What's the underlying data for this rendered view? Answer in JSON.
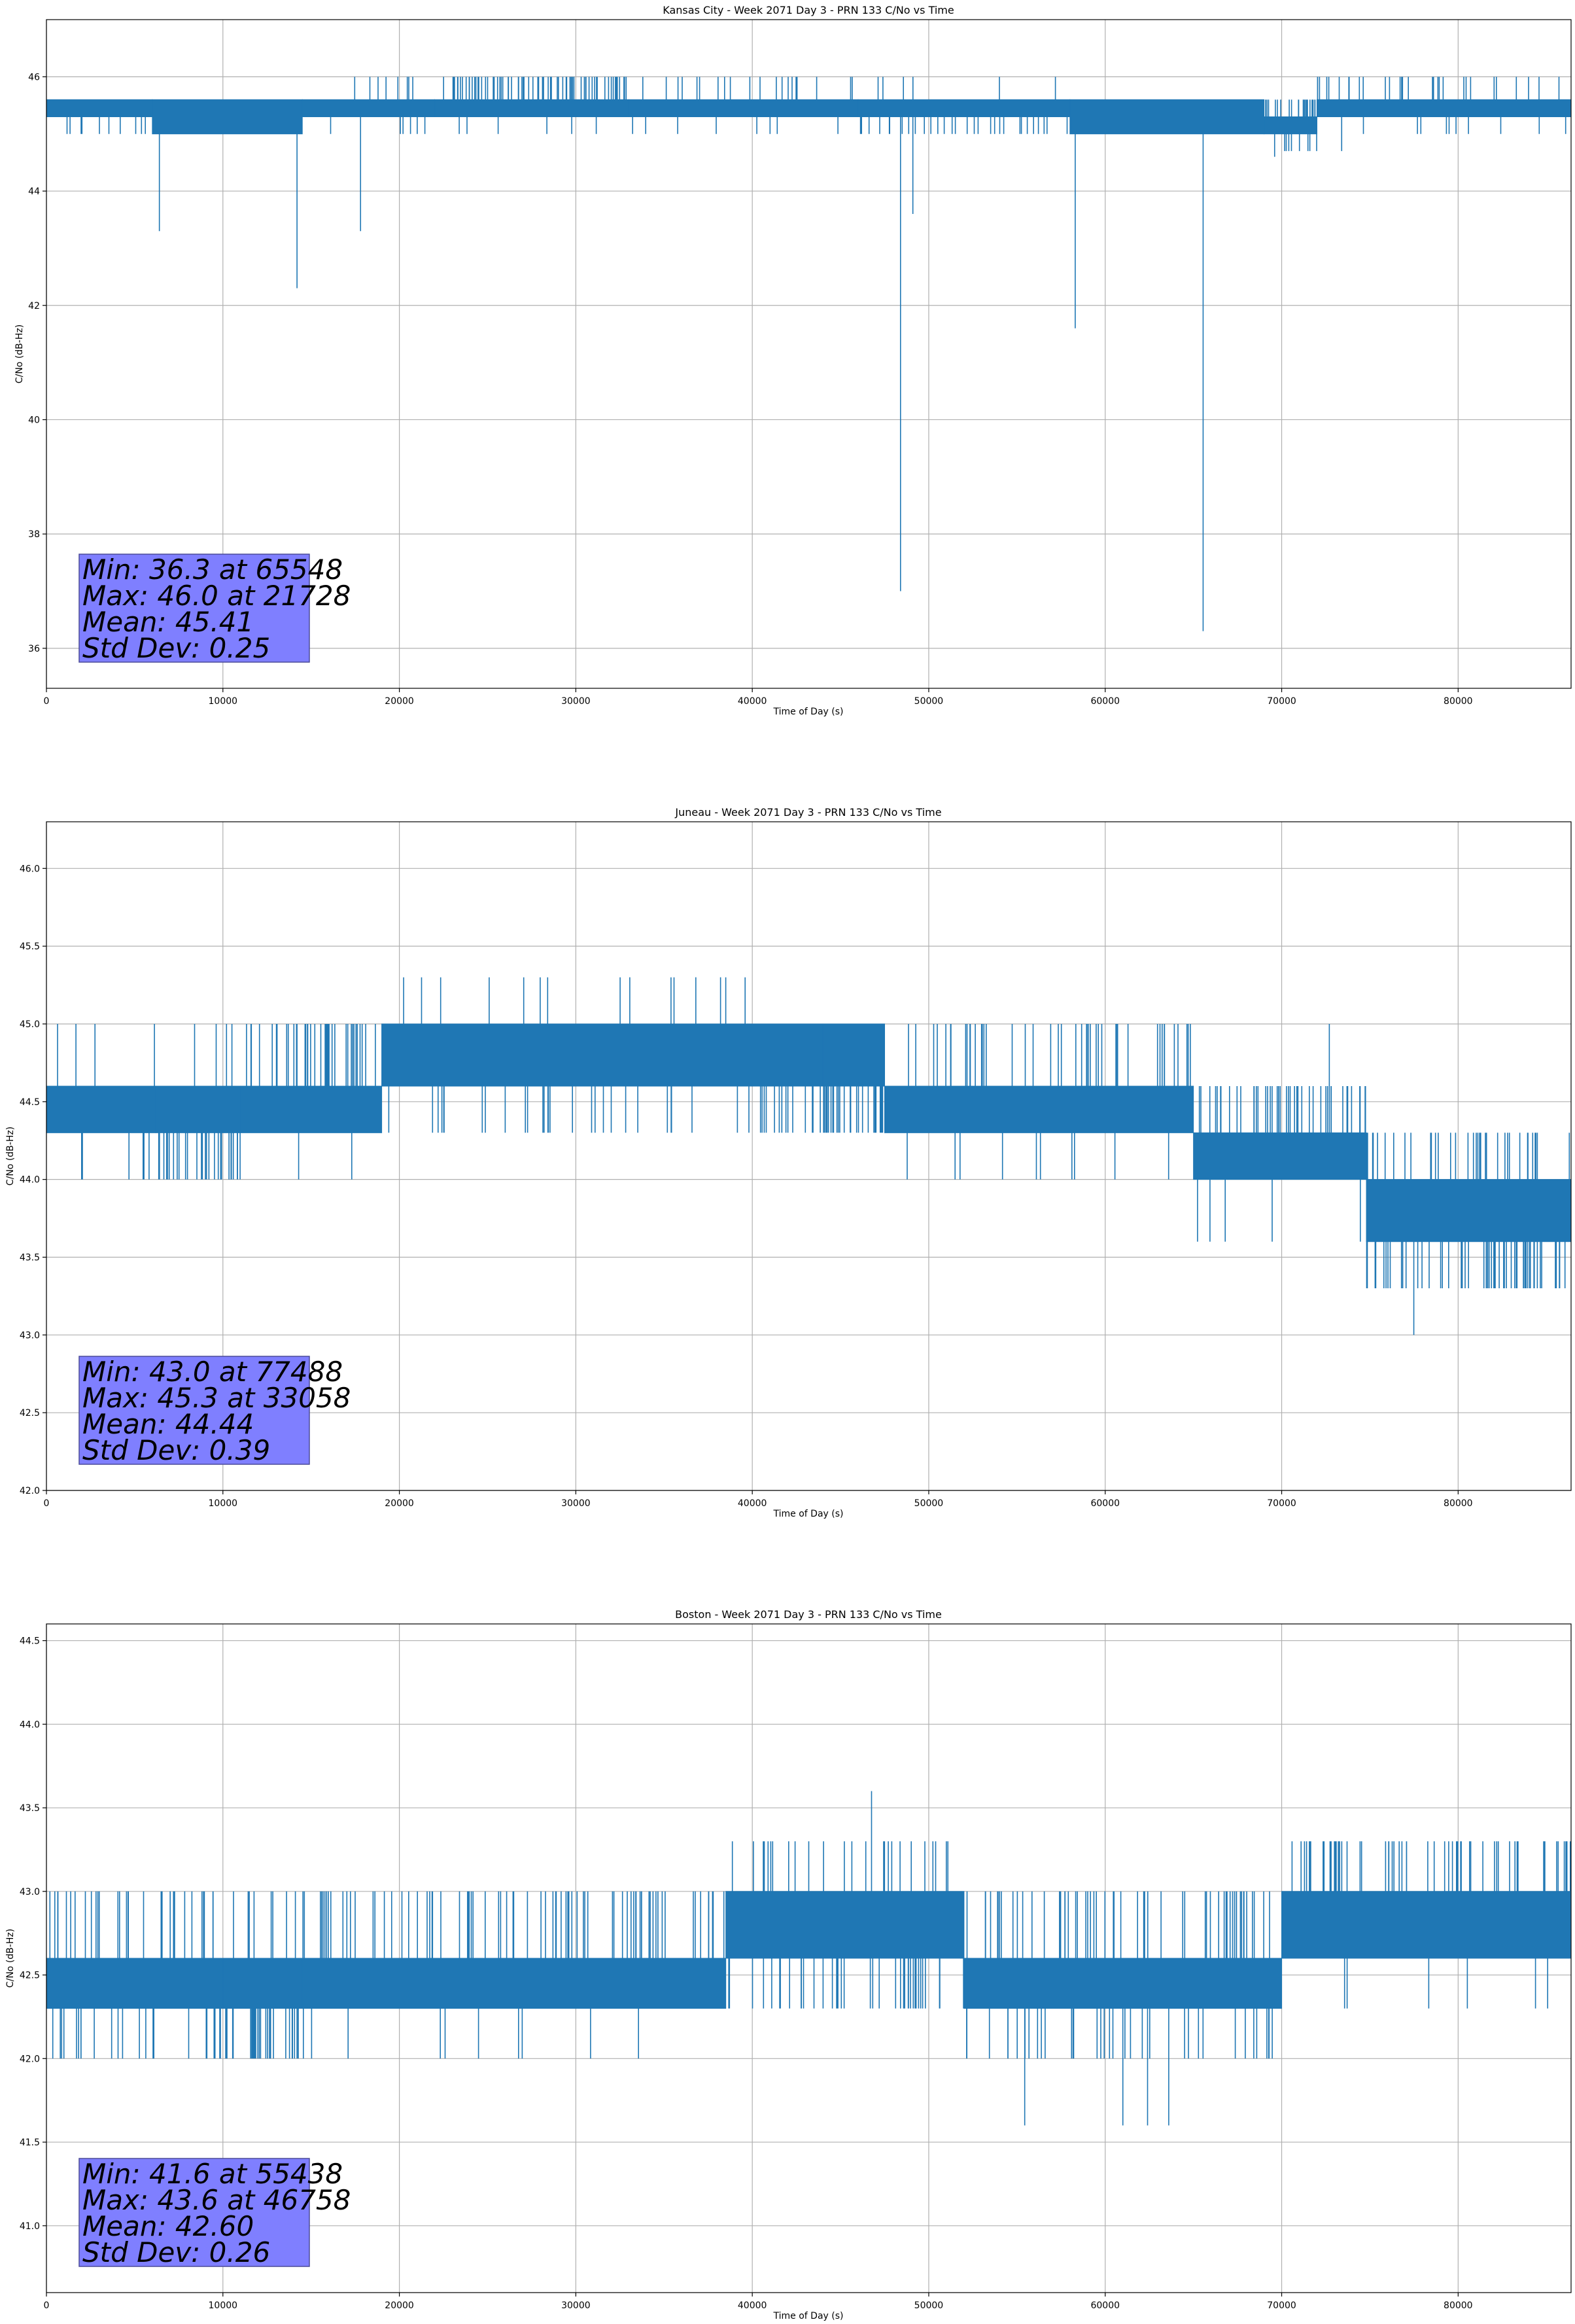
{
  "chart_data": [
    {
      "type": "line",
      "title": "Kansas City - Week 2071 Day 3 - PRN 133 C/No vs Time",
      "xlabel": "Time of Day (s)",
      "ylabel": "C/No (dB-Hz)",
      "xlim": [
        0,
        86400
      ],
      "ylim": [
        35.3,
        47.0
      ],
      "xticks": [
        0,
        10000,
        20000,
        30000,
        40000,
        50000,
        60000,
        70000,
        80000
      ],
      "yticks": [
        36,
        38,
        40,
        42,
        44,
        46
      ],
      "xtick_labels": [
        "0",
        "10000",
        "20000",
        "30000",
        "40000",
        "50000",
        "60000",
        "70000",
        "80000"
      ],
      "ytick_labels": [
        "36",
        "38",
        "40",
        "42",
        "44",
        "46"
      ],
      "grid": true,
      "series": [
        {
          "name": "C/No",
          "color": "#1f77b4",
          "bands": [
            {
              "x_start": 0,
              "x_end": 6000,
              "low": 45.3,
              "high": 45.6,
              "up_spikes": 6,
              "up_to": 45.6,
              "down_spikes": 10,
              "down_to": 45.0
            },
            {
              "x_start": 6000,
              "x_end": 14500,
              "low": 45.0,
              "high": 45.6,
              "up_spikes": 10,
              "up_to": 45.6,
              "down_spikes": 6,
              "down_to": 45.0
            },
            {
              "x_start": 14500,
              "x_end": 22000,
              "low": 45.3,
              "high": 45.6,
              "up_spikes": 8,
              "up_to": 46.0,
              "down_spikes": 6,
              "down_to": 45.0
            },
            {
              "x_start": 22000,
              "x_end": 33000,
              "low": 45.3,
              "high": 45.6,
              "up_spikes": 80,
              "up_to": 46.0,
              "down_spikes": 6,
              "down_to": 45.0
            },
            {
              "x_start": 33000,
              "x_end": 46000,
              "low": 45.3,
              "high": 45.6,
              "up_spikes": 20,
              "up_to": 46.0,
              "down_spikes": 8,
              "down_to": 45.0
            },
            {
              "x_start": 46000,
              "x_end": 58000,
              "low": 45.3,
              "high": 45.6,
              "up_spikes": 6,
              "up_to": 46.0,
              "down_spikes": 30,
              "down_to": 45.0
            },
            {
              "x_start": 58000,
              "x_end": 69000,
              "low": 45.0,
              "high": 45.6,
              "up_spikes": 40,
              "up_to": 45.6,
              "down_spikes": 20,
              "down_to": 45.0
            },
            {
              "x_start": 69000,
              "x_end": 72000,
              "low": 45.0,
              "high": 45.3,
              "up_spikes": 25,
              "up_to": 45.6,
              "down_spikes": 8,
              "down_to": 44.7
            },
            {
              "x_start": 72000,
              "x_end": 86400,
              "low": 45.3,
              "high": 45.6,
              "up_spikes": 30,
              "up_to": 46.0,
              "down_spikes": 10,
              "down_to": 45.0
            }
          ],
          "dips": [
            {
              "x": 6400,
              "y": 43.3
            },
            {
              "x": 14200,
              "y": 42.3
            },
            {
              "x": 17800,
              "y": 43.3
            },
            {
              "x": 48400,
              "y": 37.0
            },
            {
              "x": 49100,
              "y": 43.6
            },
            {
              "x": 58300,
              "y": 41.6
            },
            {
              "x": 65548,
              "y": 36.3
            },
            {
              "x": 69600,
              "y": 44.6
            },
            {
              "x": 73400,
              "y": 44.7
            }
          ]
        }
      ],
      "stats": {
        "line1": "Min: 36.3 at 65548",
        "line2": "Max: 46.0 at 21728",
        "line3": "Mean: 45.41",
        "line4": "Std Dev: 0.25"
      }
    },
    {
      "type": "line",
      "title": "Juneau - Week 2071 Day 3 - PRN 133 C/No vs Time",
      "xlabel": "Time of Day (s)",
      "ylabel": "C/No (dB-Hz)",
      "xlim": [
        0,
        86400
      ],
      "ylim": [
        42.0,
        46.3
      ],
      "xticks": [
        0,
        10000,
        20000,
        30000,
        40000,
        50000,
        60000,
        70000,
        80000
      ],
      "yticks": [
        42.0,
        42.5,
        43.0,
        43.5,
        44.0,
        44.5,
        45.0,
        45.5,
        46.0
      ],
      "xtick_labels": [
        "0",
        "10000",
        "20000",
        "30000",
        "40000",
        "50000",
        "60000",
        "70000",
        "80000"
      ],
      "ytick_labels": [
        "42.0",
        "42.5",
        "43.0",
        "43.5",
        "44.0",
        "44.5",
        "45.0",
        "45.5",
        "46.0"
      ],
      "grid": true,
      "series": [
        {
          "name": "C/No",
          "color": "#1f77b4",
          "bands": [
            {
              "x_start": 0,
              "x_end": 6200,
              "low": 44.3,
              "high": 44.6,
              "up_spikes": 4,
              "up_to": 45.0,
              "down_spikes": 6,
              "down_to": 44.0
            },
            {
              "x_start": 6200,
              "x_end": 11000,
              "low": 44.3,
              "high": 44.6,
              "up_spikes": 4,
              "up_to": 45.0,
              "down_spikes": 30,
              "down_to": 44.0
            },
            {
              "x_start": 11000,
              "x_end": 19000,
              "low": 44.3,
              "high": 44.6,
              "up_spikes": 40,
              "up_to": 45.0,
              "down_spikes": 2,
              "down_to": 44.0
            },
            {
              "x_start": 19000,
              "x_end": 44000,
              "low": 44.6,
              "high": 45.0,
              "up_spikes": 12,
              "up_to": 45.3,
              "down_spikes": 45,
              "down_to": 44.3
            },
            {
              "x_start": 44000,
              "x_end": 47500,
              "low": 44.6,
              "high": 45.0,
              "up_spikes": 3,
              "up_to": 45.0,
              "down_spikes": 30,
              "down_to": 44.3
            },
            {
              "x_start": 47500,
              "x_end": 65000,
              "low": 44.3,
              "high": 44.6,
              "up_spikes": 45,
              "up_to": 45.0,
              "down_spikes": 10,
              "down_to": 44.0
            },
            {
              "x_start": 65000,
              "x_end": 74800,
              "low": 44.0,
              "high": 44.3,
              "up_spikes": 45,
              "up_to": 44.6,
              "down_spikes": 4,
              "down_to": 43.6
            },
            {
              "x_start": 74800,
              "x_end": 86400,
              "low": 43.6,
              "high": 44.0,
              "up_spikes": 35,
              "up_to": 44.3,
              "down_spikes": 55,
              "down_to": 43.3
            }
          ],
          "dips": [
            {
              "x": 66800,
              "y": 43.6
            },
            {
              "x": 77488,
              "y": 43.0
            }
          ],
          "peaks": [
            {
              "x": 33058,
              "y": 45.3
            },
            {
              "x": 36800,
              "y": 45.3
            },
            {
              "x": 38200,
              "y": 45.3
            },
            {
              "x": 72700,
              "y": 45.0
            }
          ]
        }
      ],
      "stats": {
        "line1": "Min: 43.0 at 77488",
        "line2": "Max: 45.3 at 33058",
        "line3": "Mean: 44.44",
        "line4": "Std Dev: 0.39"
      }
    },
    {
      "type": "line",
      "title": "Boston - Week 2071 Day 3 - PRN 133 C/No vs Time",
      "xlabel": "Time of Day (s)",
      "ylabel": "C/No (dB-Hz)",
      "xlim": [
        0,
        86400
      ],
      "ylim": [
        40.6,
        44.6
      ],
      "xticks": [
        0,
        10000,
        20000,
        30000,
        40000,
        50000,
        60000,
        70000,
        80000
      ],
      "yticks": [
        41.0,
        41.5,
        42.0,
        42.5,
        43.0,
        43.5,
        44.0,
        44.5
      ],
      "xtick_labels": [
        "0",
        "10000",
        "20000",
        "30000",
        "40000",
        "50000",
        "60000",
        "70000",
        "80000"
      ],
      "ytick_labels": [
        "41.0",
        "41.5",
        "42.0",
        "42.5",
        "43.0",
        "43.5",
        "44.0",
        "44.5"
      ],
      "grid": true,
      "series": [
        {
          "name": "C/No",
          "color": "#1f77b4",
          "bands": [
            {
              "x_start": 0,
              "x_end": 10000,
              "low": 42.3,
              "high": 42.6,
              "up_spikes": 30,
              "up_to": 43.0,
              "down_spikes": 25,
              "down_to": 42.0
            },
            {
              "x_start": 10000,
              "x_end": 14500,
              "low": 42.3,
              "high": 42.6,
              "up_spikes": 8,
              "up_to": 43.0,
              "down_spikes": 30,
              "down_to": 42.0
            },
            {
              "x_start": 14500,
              "x_end": 38500,
              "low": 42.3,
              "high": 42.6,
              "up_spikes": 80,
              "up_to": 43.0,
              "down_spikes": 10,
              "down_to": 42.0
            },
            {
              "x_start": 38500,
              "x_end": 52000,
              "low": 42.6,
              "high": 43.0,
              "up_spikes": 25,
              "up_to": 43.3,
              "down_spikes": 40,
              "down_to": 42.3
            },
            {
              "x_start": 52000,
              "x_end": 70000,
              "low": 42.3,
              "high": 42.6,
              "up_spikes": 60,
              "up_to": 43.0,
              "down_spikes": 35,
              "down_to": 42.0
            },
            {
              "x_start": 70000,
              "x_end": 86400,
              "low": 42.6,
              "high": 43.0,
              "up_spikes": 60,
              "up_to": 43.3,
              "down_spikes": 6,
              "down_to": 42.3
            }
          ],
          "dips": [
            {
              "x": 55438,
              "y": 41.6
            },
            {
              "x": 61000,
              "y": 41.6
            },
            {
              "x": 62400,
              "y": 41.6
            },
            {
              "x": 63600,
              "y": 41.6
            }
          ],
          "peaks": [
            {
              "x": 46758,
              "y": 43.6
            }
          ]
        }
      ],
      "stats": {
        "line1": "Min: 41.6 at 55438",
        "line2": "Max: 43.6 at 46758",
        "line3": "Mean: 42.60",
        "line4": "Std Dev: 0.26"
      }
    }
  ]
}
